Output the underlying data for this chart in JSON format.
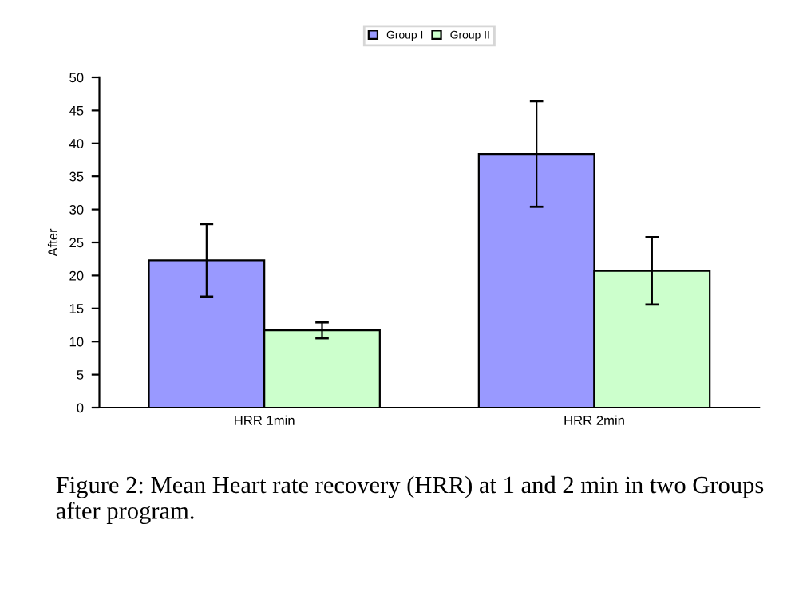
{
  "chart_data": {
    "type": "bar",
    "categories": [
      "HRR 1min",
      "HRR 2min"
    ],
    "series": [
      {
        "name": "Group I",
        "color": "#9999ff",
        "values": [
          22.3,
          38.4
        ],
        "errors": [
          5.5,
          8.0
        ]
      },
      {
        "name": "Group II",
        "color": "#ccffcc",
        "values": [
          11.7,
          20.7
        ],
        "errors": [
          1.2,
          5.1
        ]
      }
    ],
    "ylabel": "After",
    "ylim": [
      0,
      50
    ],
    "yticks": [
      0,
      5,
      10,
      15,
      20,
      25,
      30,
      35,
      40,
      45,
      50
    ],
    "legend": "top",
    "grid": false,
    "annotations": [
      "Figure 2: Mean Heart rate recovery (HRR) at 1 and 2 min in two Groups after program."
    ]
  }
}
